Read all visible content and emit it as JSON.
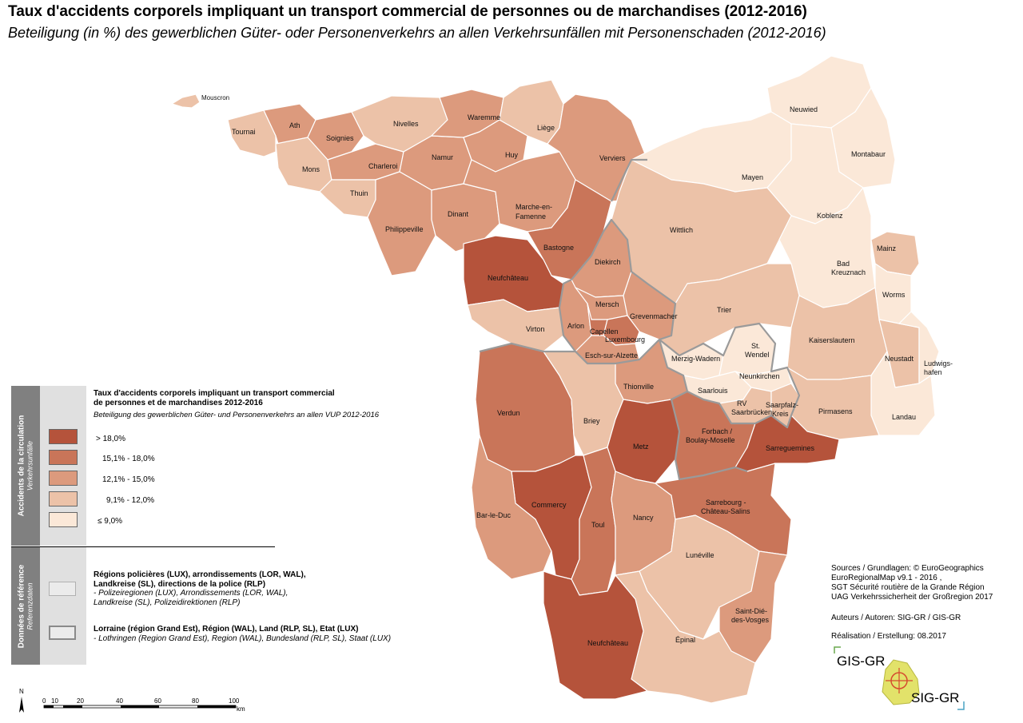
{
  "title": "Taux d'accidents corporels impliquant un transport commercial de personnes ou de marchandises (2012-2016)",
  "subtitle": "Beteiligung (in %) des gewerblichen Güter- oder Personenverkehrs an allen Verkehrsunfällen mit Personenschaden (2012-2016)",
  "colors": {
    "c5": "#b5533b",
    "c4": "#c97559",
    "c3": "#dc9a7d",
    "c2": "#ecc2a8",
    "c1": "#fbe8d8",
    "border": "#ffffff",
    "region_border": "#9a9a9a"
  },
  "legend": {
    "side_main_fr": "Accidents de la circulation",
    "side_main_de": "Verkehrsunfälle",
    "side_ref_fr": "Données de référence",
    "side_ref_de": "Referenzdaten",
    "title_line1": "Taux d'accidents corporels impliquant un transport commercial",
    "title_line2": "de personnes et de marchandises 2012-2016",
    "subtitle": "Beteiligung des gewerblichen Güter- und Personenverkehrs an allen VUP 2012-2016",
    "classes": [
      {
        "label": "> 18,0%",
        "color": "c5"
      },
      {
        "label": "15,1% - 18,0%",
        "color": "c4"
      },
      {
        "label": "12,1% - 15,0%",
        "color": "c3"
      },
      {
        "label": "9,1% - 12,0%",
        "color": "c2"
      },
      {
        "label": "≤ 9,0%",
        "color": "c1"
      }
    ],
    "ref1_fr_1": "Régions policières (LUX), arrondissements (LOR, WAL),",
    "ref1_fr_2": "Landkreise (SL), directions de la police (RLP)",
    "ref1_de_1": "- Polizeiregionen (LUX), Arrondissements (LOR, WAL),",
    "ref1_de_2": "Landkreise (SL), Polizeidirektionen (RLP)",
    "ref2_fr": "Lorraine (région Grand Est), Région (WAL), Land (RLP, SL), Etat (LUX)",
    "ref2_de": "- Lothringen (Region Grand Est), Region (WAL), Bundesland (RLP, SL), Staat (LUX)"
  },
  "sources": {
    "line1": "Sources / Grundlagen: © EuroGeographics",
    "line2": "EuroRegionalMap v9.1 - 2016 ,",
    "line3": "SGT Sécurité routière de la Grande Région",
    "line4": "UAG Verkehrssicherheit der Großregion 2017",
    "authors": "Auteurs / Autoren: SIG-GR / GIS-GR",
    "realisation": "Réalisation / Erstellung: 08.2017"
  },
  "logo": {
    "top": "GIS-GR",
    "bottom": "SIG-GR"
  },
  "scale": {
    "ticks": [
      "0",
      "10",
      "20",
      "40",
      "60",
      "80",
      "100"
    ],
    "unit": "km",
    "north": "N"
  },
  "regions": [
    {
      "name": "Mouscron",
      "cls": "c2"
    },
    {
      "name": "Tournai",
      "cls": "c2"
    },
    {
      "name": "Ath",
      "cls": "c3"
    },
    {
      "name": "Soignies",
      "cls": "c3"
    },
    {
      "name": "Mons",
      "cls": "c2"
    },
    {
      "name": "Charleroi",
      "cls": "c3"
    },
    {
      "name": "Thuin",
      "cls": "c2"
    },
    {
      "name": "Nivelles",
      "cls": "c2"
    },
    {
      "name": "Namur",
      "cls": "c3"
    },
    {
      "name": "Waremme",
      "cls": "c3"
    },
    {
      "name": "Huy",
      "cls": "c3"
    },
    {
      "name": "Liège",
      "cls": "c2"
    },
    {
      "name": "Verviers",
      "cls": "c3"
    },
    {
      "name": "Philippeville",
      "cls": "c3"
    },
    {
      "name": "Dinant",
      "cls": "c3"
    },
    {
      "name": "Marche-en-Famenne",
      "cls": "c3"
    },
    {
      "name": "Bastogne",
      "cls": "c4"
    },
    {
      "name": "Neufchâteau",
      "cls": "c5"
    },
    {
      "name": "Virton",
      "cls": "c2"
    },
    {
      "name": "Arlon",
      "cls": "c3"
    },
    {
      "name": "Diekirch",
      "cls": "c3"
    },
    {
      "name": "Mersch",
      "cls": "c3"
    },
    {
      "name": "Grevenmacher",
      "cls": "c3"
    },
    {
      "name": "Capellen",
      "cls": "c4"
    },
    {
      "name": "Luxembourg",
      "cls": "c4"
    },
    {
      "name": "Esch-sur-Alzette",
      "cls": "c3"
    },
    {
      "name": "Neuwied",
      "cls": "c1"
    },
    {
      "name": "Montabaur",
      "cls": "c1"
    },
    {
      "name": "Mayen",
      "cls": "c1"
    },
    {
      "name": "Koblenz",
      "cls": "c1"
    },
    {
      "name": "Wittlich",
      "cls": "c2"
    },
    {
      "name": "Bad Kreuznach",
      "cls": "c1"
    },
    {
      "name": "Mainz",
      "cls": "c2"
    },
    {
      "name": "Worms",
      "cls": "c1"
    },
    {
      "name": "Trier",
      "cls": "c2"
    },
    {
      "name": "Kaiserslautern",
      "cls": "c2"
    },
    {
      "name": "Neustadt",
      "cls": "c2"
    },
    {
      "name": "Ludwigs-hafen",
      "cls": "c1"
    },
    {
      "name": "Landau",
      "cls": "c1"
    },
    {
      "name": "Pirmasens",
      "cls": "c2"
    },
    {
      "name": "Merzig-Wadern",
      "cls": "c1"
    },
    {
      "name": "St. Wendel",
      "cls": "c1"
    },
    {
      "name": "Neunkirchen",
      "cls": "c1"
    },
    {
      "name": "Saarlouis",
      "cls": "c1"
    },
    {
      "name": "RV Saarbrücken",
      "cls": "c2"
    },
    {
      "name": "Saarpfalz-Kreis",
      "cls": "c2"
    },
    {
      "name": "Thionville",
      "cls": "c3"
    },
    {
      "name": "Verdun",
      "cls": "c4"
    },
    {
      "name": "Briey",
      "cls": "c2"
    },
    {
      "name": "Metz",
      "cls": "c5"
    },
    {
      "name": "Forbach / Boulay-Moselle",
      "cls": "c4"
    },
    {
      "name": "Sarreguemines",
      "cls": "c5"
    },
    {
      "name": "Commercy",
      "cls": "c5"
    },
    {
      "name": "Bar-le-Duc",
      "cls": "c3"
    },
    {
      "name": "Toul",
      "cls": "c4"
    },
    {
      "name": "Nancy",
      "cls": "c3"
    },
    {
      "name": "Sarrebourg - Château-Salins",
      "cls": "c4"
    },
    {
      "name": "Lunéville",
      "cls": "c2"
    },
    {
      "name": "Saint-Dié-des-Vosges",
      "cls": "c3"
    },
    {
      "name": "Épinal",
      "cls": "c2"
    },
    {
      "name": "Neufchâteau",
      "cls": "c5"
    }
  ]
}
